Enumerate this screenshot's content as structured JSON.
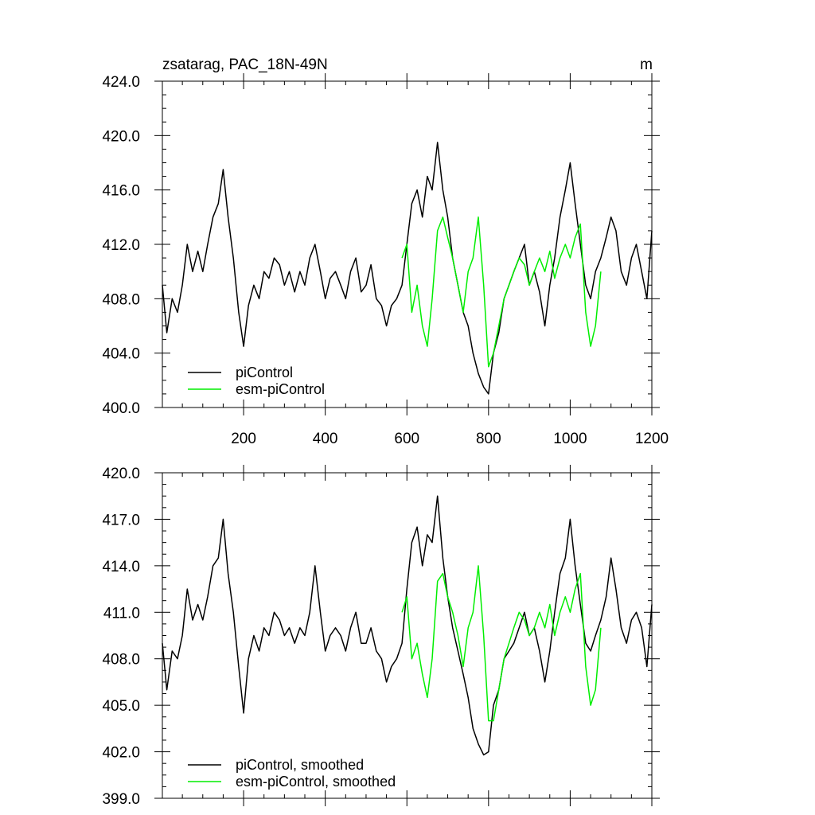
{
  "figure": {
    "title": "zsatarag, PAC_18N-49N",
    "units": "m"
  },
  "chart_data": [
    {
      "type": "line",
      "title": "zsatarag, PAC_18N-49N",
      "units_label": "m",
      "xlim": [
        1,
        1200
      ],
      "ylim": [
        400,
        424
      ],
      "x_ticks": [
        200,
        400,
        600,
        800,
        1000,
        1200
      ],
      "y_ticks": [
        400,
        404,
        408,
        412,
        416,
        420,
        424
      ],
      "y_tick_labels": [
        "400.0",
        "404.0",
        "408.0",
        "412.0",
        "416.0",
        "420.0",
        "424.0"
      ],
      "grid": false,
      "legend_position": "bottom-left",
      "series": [
        {
          "name": "piControl",
          "color": "#000000",
          "x": [
            1,
            12,
            25,
            38,
            50,
            62,
            75,
            88,
            100,
            112,
            125,
            138,
            150,
            162,
            175,
            188,
            200,
            212,
            225,
            238,
            250,
            262,
            275,
            288,
            300,
            312,
            325,
            338,
            350,
            362,
            375,
            388,
            400,
            412,
            425,
            438,
            450,
            462,
            475,
            488,
            500,
            512,
            525,
            538,
            550,
            562,
            575,
            588,
            600,
            612,
            625,
            638,
            650,
            662,
            675,
            688,
            700,
            712,
            725,
            738,
            750,
            762,
            775,
            788,
            800,
            812,
            825,
            838,
            850,
            862,
            875,
            888,
            900,
            912,
            925,
            938,
            950,
            962,
            975,
            988,
            1000,
            1012,
            1025,
            1038,
            1050,
            1062,
            1075,
            1088,
            1100,
            1112,
            1125,
            1138,
            1150,
            1162,
            1175,
            1188,
            1200
          ],
          "y": [
            409,
            405.5,
            408,
            407,
            409,
            412,
            410,
            411.5,
            410,
            412,
            414,
            415,
            417.5,
            414,
            411,
            407,
            404.5,
            407.5,
            409,
            408,
            410,
            409.5,
            411,
            410.5,
            409,
            410,
            408.5,
            410,
            409,
            411,
            412,
            410,
            408,
            409.5,
            410,
            409,
            408,
            410,
            411,
            408.5,
            409,
            410.5,
            408,
            407.5,
            406,
            407.5,
            408,
            409,
            412,
            415,
            416,
            414,
            417,
            416,
            419.5,
            416,
            414,
            411,
            409,
            407,
            406,
            404,
            402.5,
            401.5,
            401,
            404,
            405.5,
            408,
            409,
            410,
            411,
            412,
            409,
            410,
            408.5,
            406,
            409,
            411,
            414,
            416,
            418,
            415,
            412,
            409,
            408,
            410,
            411,
            412.5,
            414,
            413,
            410,
            409,
            411,
            412,
            410,
            408,
            413
          ]
        },
        {
          "name": "esm-piControl",
          "color": "#00ee00",
          "x": [
            588,
            600,
            612,
            625,
            638,
            650,
            662,
            675,
            688,
            700,
            712,
            725,
            738,
            750,
            762,
            775,
            788,
            800,
            812,
            825,
            838,
            850,
            862,
            875,
            888,
            900,
            912,
            925,
            938,
            950,
            962,
            975,
            988,
            1000,
            1012,
            1025,
            1038,
            1050,
            1062,
            1075
          ],
          "y": [
            411,
            412,
            407,
            409,
            406,
            404.5,
            408,
            413,
            414,
            412.5,
            411,
            409,
            407,
            410,
            411,
            414,
            409,
            403,
            404,
            406,
            408,
            409,
            410,
            411,
            410.5,
            409,
            410,
            411,
            410,
            411.5,
            409.5,
            411,
            412,
            411,
            412.5,
            413.5,
            407,
            404.5,
            406,
            410
          ]
        }
      ]
    },
    {
      "type": "line",
      "xlim": [
        1,
        1200
      ],
      "ylim": [
        399,
        420
      ],
      "x_ticks": [
        200,
        400,
        600,
        800,
        1000,
        1200
      ],
      "y_ticks": [
        399,
        402,
        405,
        408,
        411,
        414,
        417,
        420
      ],
      "y_tick_labels": [
        "399.0",
        "402.0",
        "405.0",
        "408.0",
        "411.0",
        "414.0",
        "417.0",
        "420.0"
      ],
      "grid": false,
      "legend_position": "bottom-left",
      "series": [
        {
          "name": "piControl, smoothed",
          "color": "#000000",
          "x": [
            1,
            12,
            25,
            38,
            50,
            62,
            75,
            88,
            100,
            112,
            125,
            138,
            150,
            162,
            175,
            188,
            200,
            212,
            225,
            238,
            250,
            262,
            275,
            288,
            300,
            312,
            325,
            338,
            350,
            362,
            375,
            388,
            400,
            412,
            425,
            438,
            450,
            462,
            475,
            488,
            500,
            512,
            525,
            538,
            550,
            562,
            575,
            588,
            600,
            612,
            625,
            638,
            650,
            662,
            675,
            688,
            700,
            712,
            725,
            738,
            750,
            762,
            775,
            788,
            800,
            812,
            825,
            838,
            850,
            862,
            875,
            888,
            900,
            912,
            925,
            938,
            950,
            962,
            975,
            988,
            1000,
            1012,
            1025,
            1038,
            1050,
            1062,
            1075,
            1088,
            1100,
            1112,
            1125,
            1138,
            1150,
            1162,
            1175,
            1188,
            1200
          ],
          "y": [
            409,
            406,
            408.5,
            408,
            409.5,
            412.5,
            410.5,
            411.5,
            410.5,
            412,
            414,
            414.5,
            417,
            413.5,
            411,
            407.5,
            404.5,
            408,
            409.5,
            408.5,
            410,
            409.5,
            411,
            410.5,
            409.5,
            410,
            409,
            410,
            409.5,
            411,
            414,
            411,
            408.5,
            409.5,
            410,
            409.5,
            408.5,
            410,
            411,
            409,
            409,
            410,
            408.5,
            408,
            406.5,
            407.5,
            408,
            409,
            412.5,
            415.5,
            416.5,
            414,
            416,
            415.5,
            418.5,
            414.5,
            412,
            410,
            408.5,
            407,
            405.5,
            403.5,
            402.5,
            401.8,
            402,
            405,
            406,
            408,
            408.5,
            409,
            410,
            411,
            409.5,
            410,
            408.5,
            406.5,
            408.5,
            411,
            413.5,
            414.5,
            417,
            414,
            411.5,
            409,
            408.5,
            409.5,
            410.5,
            412,
            414.5,
            412.5,
            410,
            409,
            410.5,
            411,
            410,
            407.5,
            411.5
          ]
        },
        {
          "name": "esm-piControl, smoothed",
          "color": "#00ee00",
          "x": [
            588,
            600,
            612,
            625,
            638,
            650,
            662,
            675,
            688,
            700,
            712,
            725,
            738,
            750,
            762,
            775,
            788,
            800,
            812,
            825,
            838,
            850,
            862,
            875,
            888,
            900,
            912,
            925,
            938,
            950,
            962,
            975,
            988,
            1000,
            1012,
            1025,
            1038,
            1050,
            1062,
            1075
          ],
          "y": [
            411,
            412,
            408,
            409,
            407,
            405.5,
            408,
            413,
            413.5,
            412,
            411,
            409.5,
            407.5,
            410,
            411,
            414,
            409.5,
            404,
            404,
            406,
            408,
            409,
            410,
            411,
            410.5,
            409.5,
            410,
            411,
            410,
            411.5,
            409.5,
            411,
            412,
            411,
            412.5,
            413.5,
            407.5,
            405,
            406,
            410
          ]
        }
      ]
    }
  ]
}
